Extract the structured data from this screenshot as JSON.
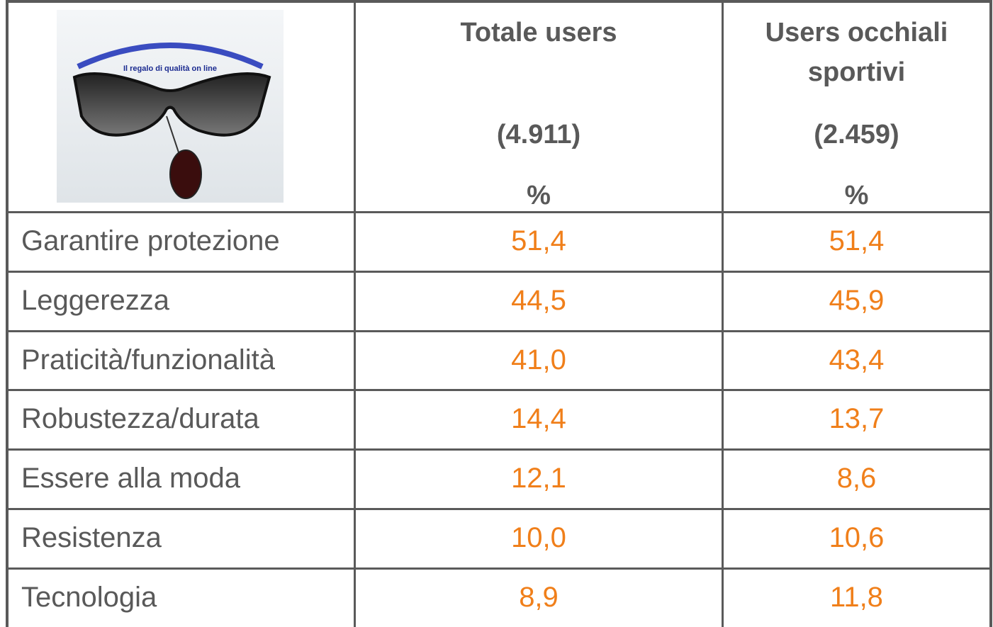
{
  "header": {
    "image_caption": "Il regalo di qualità on line",
    "columns": [
      {
        "title": "Totale users",
        "count": "(4.911)",
        "unit": "%"
      },
      {
        "title": "Users occhiali sportivi",
        "count": "(2.459)",
        "unit": "%"
      }
    ]
  },
  "rows": [
    {
      "label": "Garantire protezione",
      "values": [
        "51,4",
        "51,4"
      ]
    },
    {
      "label": "Leggerezza",
      "values": [
        "44,5",
        "45,9"
      ]
    },
    {
      "label": "Praticità/funzionalità",
      "values": [
        "41,0",
        "43,4"
      ]
    },
    {
      "label": "Robustezza/durata",
      "values": [
        "14,4",
        "13,7"
      ]
    },
    {
      "label": "Essere alla moda",
      "values": [
        "12,1",
        "8,6"
      ]
    },
    {
      "label": "Resistenza",
      "values": [
        "10,0",
        "10,6"
      ]
    },
    {
      "label": "Tecnologia",
      "values": [
        "8,9",
        "11,8"
      ]
    }
  ]
}
